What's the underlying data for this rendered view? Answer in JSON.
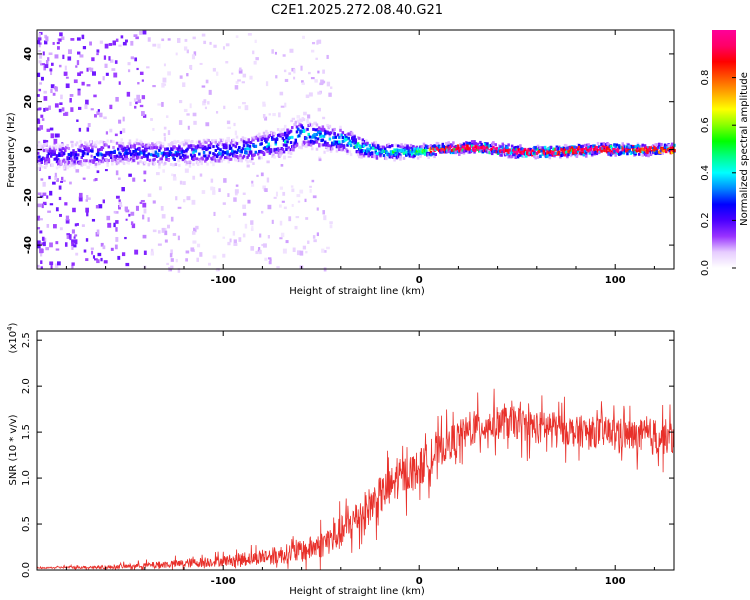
{
  "title": "C2E1.2025.272.08.40.G21",
  "chart_data": [
    {
      "type": "heatmap",
      "xlabel": "Height of straight line (km)",
      "ylabel": "Frequency (Hz)",
      "xlim": [
        -195,
        130
      ],
      "ylim": [
        -50,
        50
      ],
      "xticks": [
        -100,
        0,
        100
      ],
      "yticks": [
        -40,
        -20,
        0,
        20,
        40
      ],
      "colorbar": {
        "label": "Normalized spectral amplitude",
        "ticks": [
          "0.0",
          "0.2",
          "0.4",
          "0.6",
          "0.8"
        ],
        "range": [
          0,
          1
        ],
        "colors": [
          "#ffffff",
          "#e6ccff",
          "#9933ff",
          "#4b00ff",
          "#0000ff",
          "#0088ff",
          "#00ffff",
          "#00ff88",
          "#00ff00",
          "#88ff00",
          "#ffff00",
          "#ffaa00",
          "#ff5500",
          "#ff0000",
          "#ff0066",
          "#ff0099"
        ]
      },
      "ridge": [
        {
          "x": -195,
          "freq": -3,
          "amp": 0.25,
          "width": 5
        },
        {
          "x": -170,
          "freq": -2,
          "amp": 0.3,
          "width": 5
        },
        {
          "x": -150,
          "freq": -1,
          "amp": 0.3,
          "width": 5
        },
        {
          "x": -130,
          "freq": -2,
          "amp": 0.32,
          "width": 5
        },
        {
          "x": -110,
          "freq": -1,
          "amp": 0.35,
          "width": 5
        },
        {
          "x": -90,
          "freq": 0,
          "amp": 0.38,
          "width": 5
        },
        {
          "x": -70,
          "freq": 3,
          "amp": 0.4,
          "width": 6
        },
        {
          "x": -60,
          "freq": 7,
          "amp": 0.42,
          "width": 6
        },
        {
          "x": -50,
          "freq": 5,
          "amp": 0.42,
          "width": 5
        },
        {
          "x": -40,
          "freq": 4,
          "amp": 0.45,
          "width": 5
        },
        {
          "x": -30,
          "freq": 1,
          "amp": 0.48,
          "width": 4
        },
        {
          "x": -20,
          "freq": -1,
          "amp": 0.5,
          "width": 3
        },
        {
          "x": 0,
          "freq": -1,
          "amp": 0.6,
          "width": 2.5
        },
        {
          "x": 10,
          "freq": 0,
          "amp": 0.8,
          "width": 2
        },
        {
          "x": 30,
          "freq": 1,
          "amp": 0.85,
          "width": 2
        },
        {
          "x": 50,
          "freq": -1,
          "amp": 0.85,
          "width": 2
        },
        {
          "x": 70,
          "freq": -1,
          "amp": 0.8,
          "width": 2
        },
        {
          "x": 90,
          "freq": 0,
          "amp": 0.85,
          "width": 2
        },
        {
          "x": 110,
          "freq": 0,
          "amp": 0.8,
          "width": 2
        },
        {
          "x": 130,
          "freq": 0,
          "amp": 0.7,
          "width": 2
        }
      ],
      "noise_region": {
        "x_from": -195,
        "x_to": -135,
        "freq_from": -50,
        "freq_to": 50,
        "amp": 0.12
      },
      "series_color": null
    },
    {
      "type": "line",
      "xlabel": "Height of straight line (km)",
      "ylabel": "SNR (10 * v/v)",
      "scale_note": "(x10",
      "scale_exp": "4",
      "scale_close": ")",
      "xlim": [
        -195,
        130
      ],
      "ylim": [
        0,
        2.6
      ],
      "xticks": [
        -100,
        0,
        100
      ],
      "yticks": [
        "0.0",
        "0.5",
        "1.0",
        "1.5",
        "2.0",
        "2.5"
      ],
      "ytick_values": [
        0,
        0.5,
        1.0,
        1.5,
        2.0,
        2.5
      ],
      "series": [
        {
          "name": "SNR",
          "color": "#e8302a",
          "x": [
            -195,
            -180,
            -160,
            -140,
            -120,
            -100,
            -80,
            -60,
            -50,
            -40,
            -30,
            -20,
            -10,
            0,
            10,
            20,
            30,
            40,
            50,
            60,
            70,
            80,
            90,
            100,
            110,
            120,
            130
          ],
          "y": [
            0.02,
            0.03,
            0.03,
            0.05,
            0.07,
            0.1,
            0.14,
            0.2,
            0.28,
            0.4,
            0.6,
            0.8,
            1.0,
            1.1,
            1.3,
            1.45,
            1.55,
            1.6,
            1.6,
            1.55,
            1.55,
            1.5,
            1.5,
            1.5,
            1.45,
            1.45,
            1.45
          ],
          "noise_y": [
            0.01,
            0.02,
            0.03,
            0.05,
            0.08,
            0.1,
            0.14,
            0.2,
            0.25,
            0.3,
            0.35,
            0.35,
            0.35,
            0.35,
            0.3,
            0.3,
            0.3,
            0.3,
            0.3,
            0.3,
            0.28,
            0.28,
            0.28,
            0.28,
            0.3,
            0.35,
            0.3
          ]
        }
      ]
    }
  ]
}
